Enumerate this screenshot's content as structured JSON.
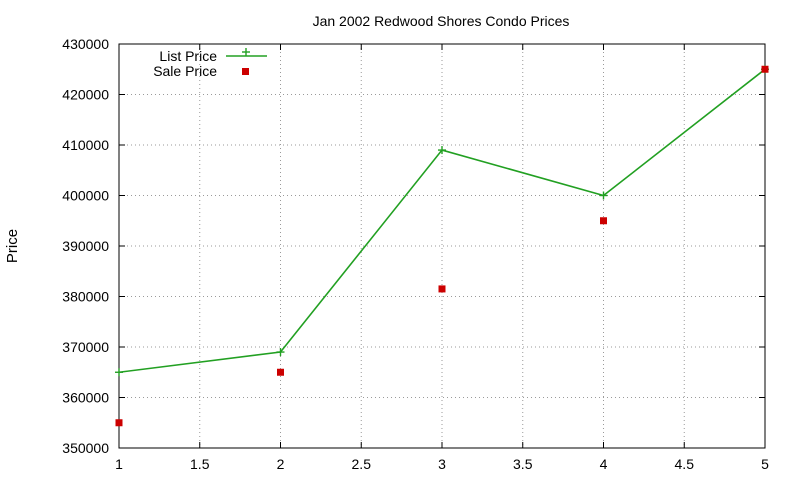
{
  "chart_data": {
    "type": "line",
    "title": "Jan 2002 Redwood Shores Condo Prices",
    "xlabel": "",
    "ylabel": "Price",
    "xlim": [
      1,
      5
    ],
    "ylim": [
      350000,
      430000
    ],
    "xticks": [
      "1",
      "1.5",
      "2",
      "2.5",
      "3",
      "3.5",
      "4",
      "4.5",
      "5"
    ],
    "yticks": [
      "350000",
      "360000",
      "370000",
      "380000",
      "390000",
      "400000",
      "410000",
      "420000",
      "430000"
    ],
    "grid": true,
    "legend_position": "top-left",
    "series": [
      {
        "name": "List Price",
        "style": "linespoints",
        "marker": "plus",
        "color": "#22a022",
        "x": [
          1,
          2,
          3,
          4,
          5
        ],
        "y": [
          365000,
          369000,
          409000,
          400000,
          425000
        ]
      },
      {
        "name": "Sale Price",
        "style": "points",
        "marker": "square",
        "color": "#cc0000",
        "x": [
          1,
          2,
          3,
          4,
          5
        ],
        "y": [
          355000,
          365000,
          381500,
          395000,
          425000
        ]
      }
    ]
  }
}
